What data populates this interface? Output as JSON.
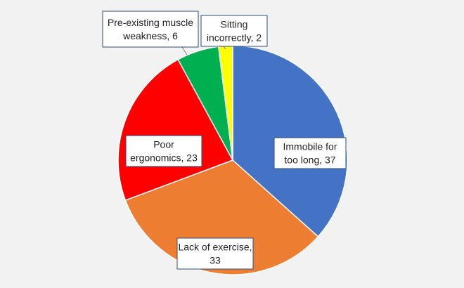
{
  "chart_data": {
    "type": "pie",
    "title": "",
    "slices": [
      {
        "label_lines": [
          "Immobile for",
          "too long, 37"
        ],
        "category": "Immobile for too long",
        "value": 37,
        "color": "#4472c4"
      },
      {
        "label_lines": [
          "Lack of exercise,",
          "33"
        ],
        "category": "Lack of exercise",
        "value": 33,
        "color": "#ed7d31"
      },
      {
        "label_lines": [
          "Poor",
          "ergonomics, 23"
        ],
        "category": "Poor ergonomics",
        "value": 23,
        "color": "#ff0000"
      },
      {
        "label_lines": [
          "Pre-existing muscle",
          "weakness, 6"
        ],
        "category": "Pre-existing muscle weakness",
        "value": 6,
        "color": "#00b050"
      },
      {
        "label_lines": [
          "Sitting",
          "incorrectly, 2"
        ],
        "category": "Sitting incorrectly",
        "value": 2,
        "color": "#ffff00"
      }
    ],
    "start_angle": "12 o'clock",
    "direction": "clockwise",
    "legend": "none",
    "data_labels": "callout boxes with category name and value",
    "label_border_color": "#2e4d7b",
    "label_background": "#ffffff",
    "slice_border_color": "#ffffff"
  }
}
